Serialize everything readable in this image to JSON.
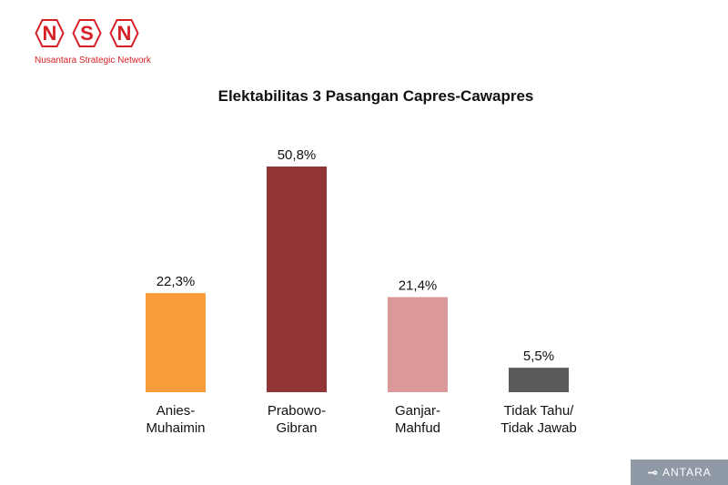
{
  "logo": {
    "letters": [
      "N",
      "S",
      "N"
    ],
    "subtitle": "Nusantara Strategic Network",
    "color": "#d71f26"
  },
  "watermark": {
    "text": "ANTARA"
  },
  "chart_data": {
    "type": "bar",
    "title": "Elektabilitas 3 Pasangan Capres-Cawapres",
    "categories": [
      [
        "Anies-",
        "Muhaimin"
      ],
      [
        "Prabowo-",
        "Gibran"
      ],
      [
        "Ganjar-",
        "Mahfud"
      ],
      [
        "Tidak Tahu/",
        "Tidak Jawab"
      ]
    ],
    "values": [
      22.3,
      50.8,
      21.4,
      5.5
    ],
    "labels": [
      "22,3%",
      "50,8%",
      "21,4%",
      "5,5%"
    ],
    "colors": [
      "#fb9c3a",
      "#933537",
      "#da9898",
      "#5a5a5a"
    ],
    "ylim": [
      0,
      50.8
    ],
    "grid": false,
    "legend": "none"
  }
}
